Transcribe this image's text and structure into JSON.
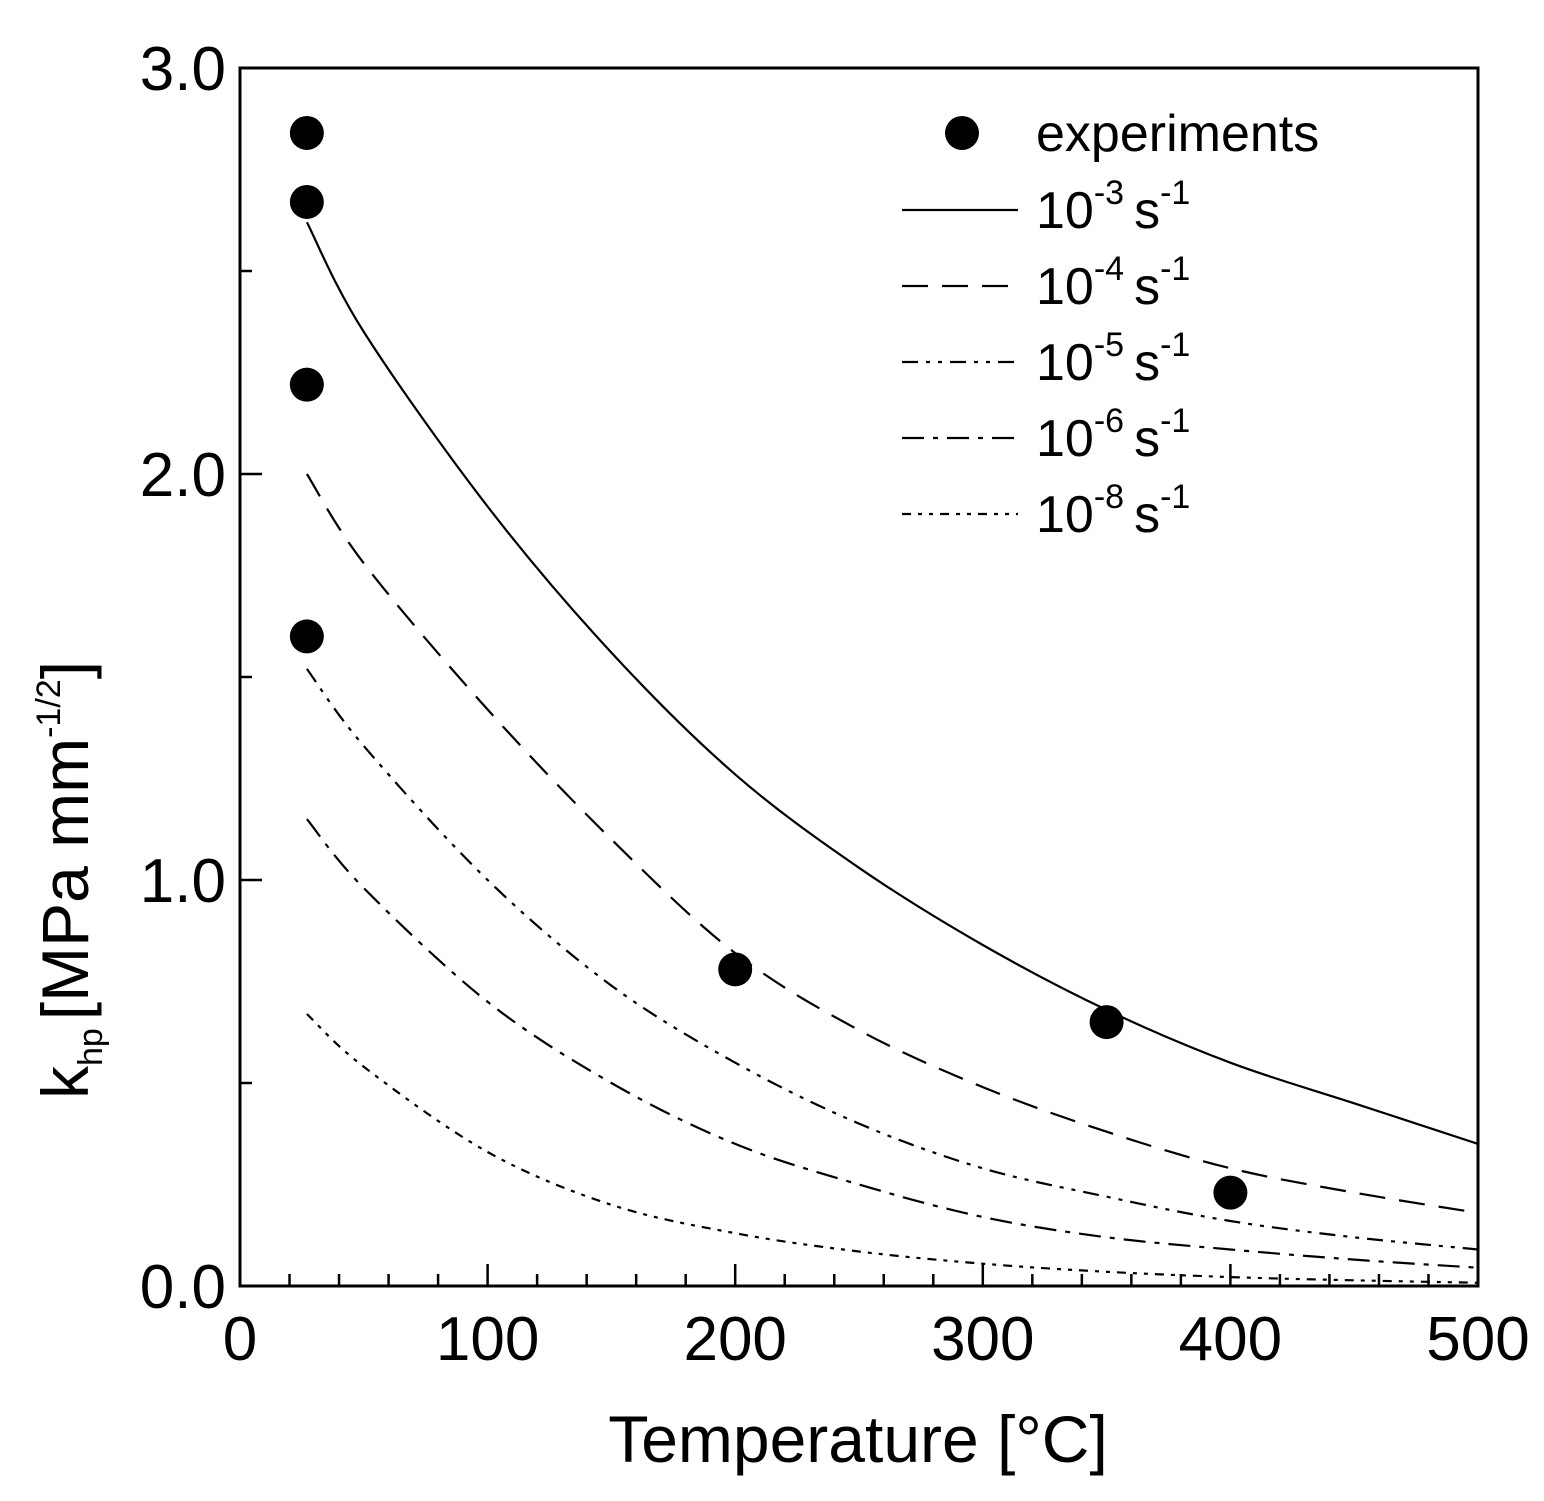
{
  "chart_data": {
    "type": "line",
    "xlabel": "Temperature [°C]",
    "ylabel": {
      "main": "k",
      "subscript": "hp",
      "unit_prefix": "[MPa mm",
      "unit_exponent": "-1/2",
      "unit_suffix": "]"
    },
    "xlim": [
      0,
      500
    ],
    "ylim": [
      0,
      3
    ],
    "x_ticks": [
      0,
      100,
      200,
      300,
      400,
      500
    ],
    "x_tick_labels": [
      "0",
      "100",
      "200",
      "300",
      "400",
      "500"
    ],
    "y_ticks": [
      0,
      1,
      2,
      3
    ],
    "y_tick_labels": [
      "0.0",
      "1.0",
      "2.0",
      "3.0"
    ],
    "x_minor_step": 20,
    "y_minor_step": 0.5,
    "grid": false,
    "legend_position": "top-right",
    "experiments": {
      "name": "experiments",
      "points": [
        {
          "x": 27,
          "y": 2.84
        },
        {
          "x": 27,
          "y": 2.67
        },
        {
          "x": 27,
          "y": 2.22
        },
        {
          "x": 27,
          "y": 1.6
        },
        {
          "x": 200,
          "y": 0.78
        },
        {
          "x": 350,
          "y": 0.65
        },
        {
          "x": 400,
          "y": 0.23
        }
      ]
    },
    "series": [
      {
        "name": "10^-3 s^-1",
        "base": "10",
        "exp": "-3",
        "unit": "s",
        "unit_exp": "-1",
        "style": "solid",
        "x": [
          27,
          50,
          100,
          150,
          200,
          250,
          300,
          350,
          400,
          450,
          500
        ],
        "y": [
          2.62,
          2.35,
          1.92,
          1.56,
          1.26,
          1.03,
          0.84,
          0.68,
          0.55,
          0.45,
          0.35
        ]
      },
      {
        "name": "10^-4 s^-1",
        "base": "10",
        "exp": "-4",
        "unit": "s",
        "unit_exp": "-1",
        "style": "dash",
        "x": [
          27,
          50,
          100,
          150,
          200,
          250,
          300,
          350,
          400,
          450,
          500
        ],
        "y": [
          2.0,
          1.78,
          1.42,
          1.1,
          0.82,
          0.63,
          0.49,
          0.38,
          0.29,
          0.23,
          0.18
        ]
      },
      {
        "name": "10^-5 s^-1",
        "base": "10",
        "exp": "-5",
        "unit": "s",
        "unit_exp": "-1",
        "style": "dashdotdot",
        "x": [
          27,
          50,
          100,
          150,
          200,
          250,
          300,
          350,
          400,
          450,
          500
        ],
        "y": [
          1.52,
          1.33,
          1.0,
          0.74,
          0.55,
          0.4,
          0.29,
          0.22,
          0.16,
          0.12,
          0.09
        ]
      },
      {
        "name": "10^-6 s^-1",
        "base": "10",
        "exp": "-6",
        "unit": "s",
        "unit_exp": "-1",
        "style": "dashdot",
        "x": [
          27,
          50,
          100,
          150,
          200,
          250,
          300,
          350,
          400,
          450,
          500
        ],
        "y": [
          1.15,
          0.98,
          0.7,
          0.5,
          0.35,
          0.25,
          0.17,
          0.12,
          0.09,
          0.065,
          0.045
        ]
      },
      {
        "name": "10^-8 s^-1",
        "base": "10",
        "exp": "-8",
        "unit": "s",
        "unit_exp": "-1",
        "style": "shortdash",
        "x": [
          27,
          50,
          100,
          150,
          200,
          250,
          300,
          350,
          400,
          450,
          500
        ],
        "y": [
          0.67,
          0.54,
          0.33,
          0.2,
          0.13,
          0.085,
          0.055,
          0.035,
          0.022,
          0.014,
          0.008
        ]
      }
    ]
  }
}
